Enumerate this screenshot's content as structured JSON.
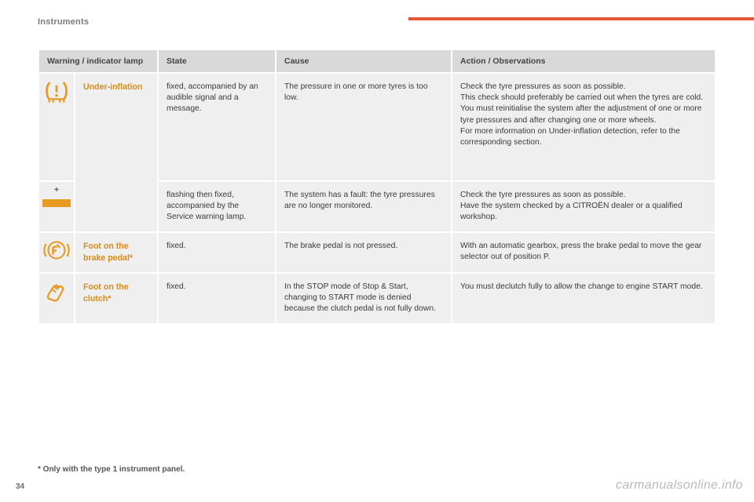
{
  "page": {
    "section": "Instruments",
    "number": "34",
    "footnote": "* Only with the type 1 instrument panel.",
    "watermark": "carmanualsonline.info"
  },
  "accent_color": "#e5553a",
  "icon_color": "#e89a23",
  "table": {
    "headers": {
      "lamp": "Warning / indicator lamp",
      "state": "State",
      "cause": "Cause",
      "action": "Action / Observations"
    },
    "rows": [
      {
        "icon": "under-inflation",
        "name": "Under-inflation",
        "state": "fixed, accompanied by an audible signal and a message.",
        "cause": "The pressure in one or more tyres is too low.",
        "action": "Check the tyre pressures as soon as possible.\nThis check should preferably be carried out when the tyres are cold.\nYou must reinitialise the system after the adjustment of one or more tyre pressures and after changing one or more wheels.\nFor more information on Under-inflation detection, refer to the corresponding section."
      },
      {
        "icon": "plus",
        "name": "",
        "state": "flashing then fixed, accompanied by the Service warning lamp.",
        "cause": "The system has a fault: the tyre pressures are no longer monitored.",
        "action": "Check the tyre pressures as soon as possible.\nHave the system checked by a CITROËN dealer or a qualified workshop."
      },
      {
        "icon": "brake-pedal",
        "name": "Foot on the brake pedal*",
        "state": "fixed.",
        "cause": "The brake pedal is not pressed.",
        "action": "With an automatic gearbox, press the brake pedal to move the gear selector out of position P."
      },
      {
        "icon": "clutch",
        "name": "Foot on the clutch*",
        "state": "fixed.",
        "cause": "In the STOP mode of Stop & Start, changing to START mode is denied because the clutch pedal is not fully down.",
        "action": "You must declutch fully to allow the change to engine START mode."
      }
    ]
  }
}
